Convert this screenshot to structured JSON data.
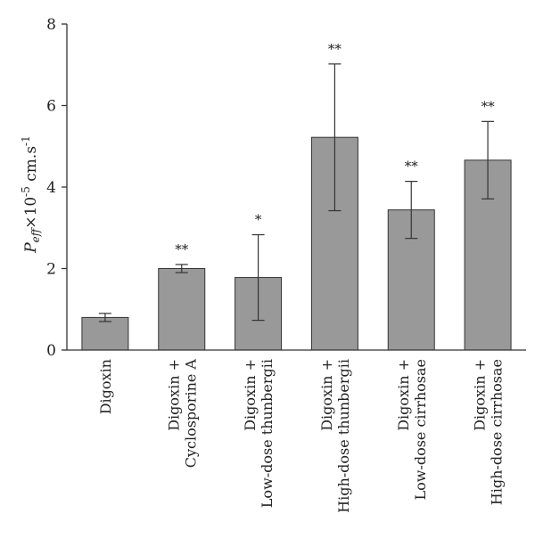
{
  "chart_data": {
    "type": "bar",
    "categories": [
      [
        "Digoxin"
      ],
      [
        "Digoxin +",
        "Cyclosporine A"
      ],
      [
        "Digoxin +",
        "Low-dose thunbergii"
      ],
      [
        "Digoxin +",
        "High-dose thunbergii"
      ],
      [
        "Digoxin +",
        "Low-dose cirrhosae"
      ],
      [
        "Digoxin +",
        "High-dose cirrhosae"
      ]
    ],
    "values": [
      0.8,
      2.0,
      1.78,
      5.22,
      3.44,
      4.66
    ],
    "errors": [
      0.1,
      0.1,
      1.05,
      1.8,
      0.7,
      0.95
    ],
    "significance": [
      "",
      "**",
      "*",
      "**",
      "**",
      "**"
    ],
    "ylabel": {
      "main": "P",
      "sub": "eff",
      "mid": "×10",
      "sup": "-5",
      "unit": " cm.s",
      "unit_sup": "-1"
    },
    "ylim": [
      0,
      8
    ],
    "yticks": [
      "0",
      "2",
      "4",
      "6",
      "8"
    ],
    "bar_color": "#999999",
    "edge_color": "#333333",
    "grid": false
  }
}
